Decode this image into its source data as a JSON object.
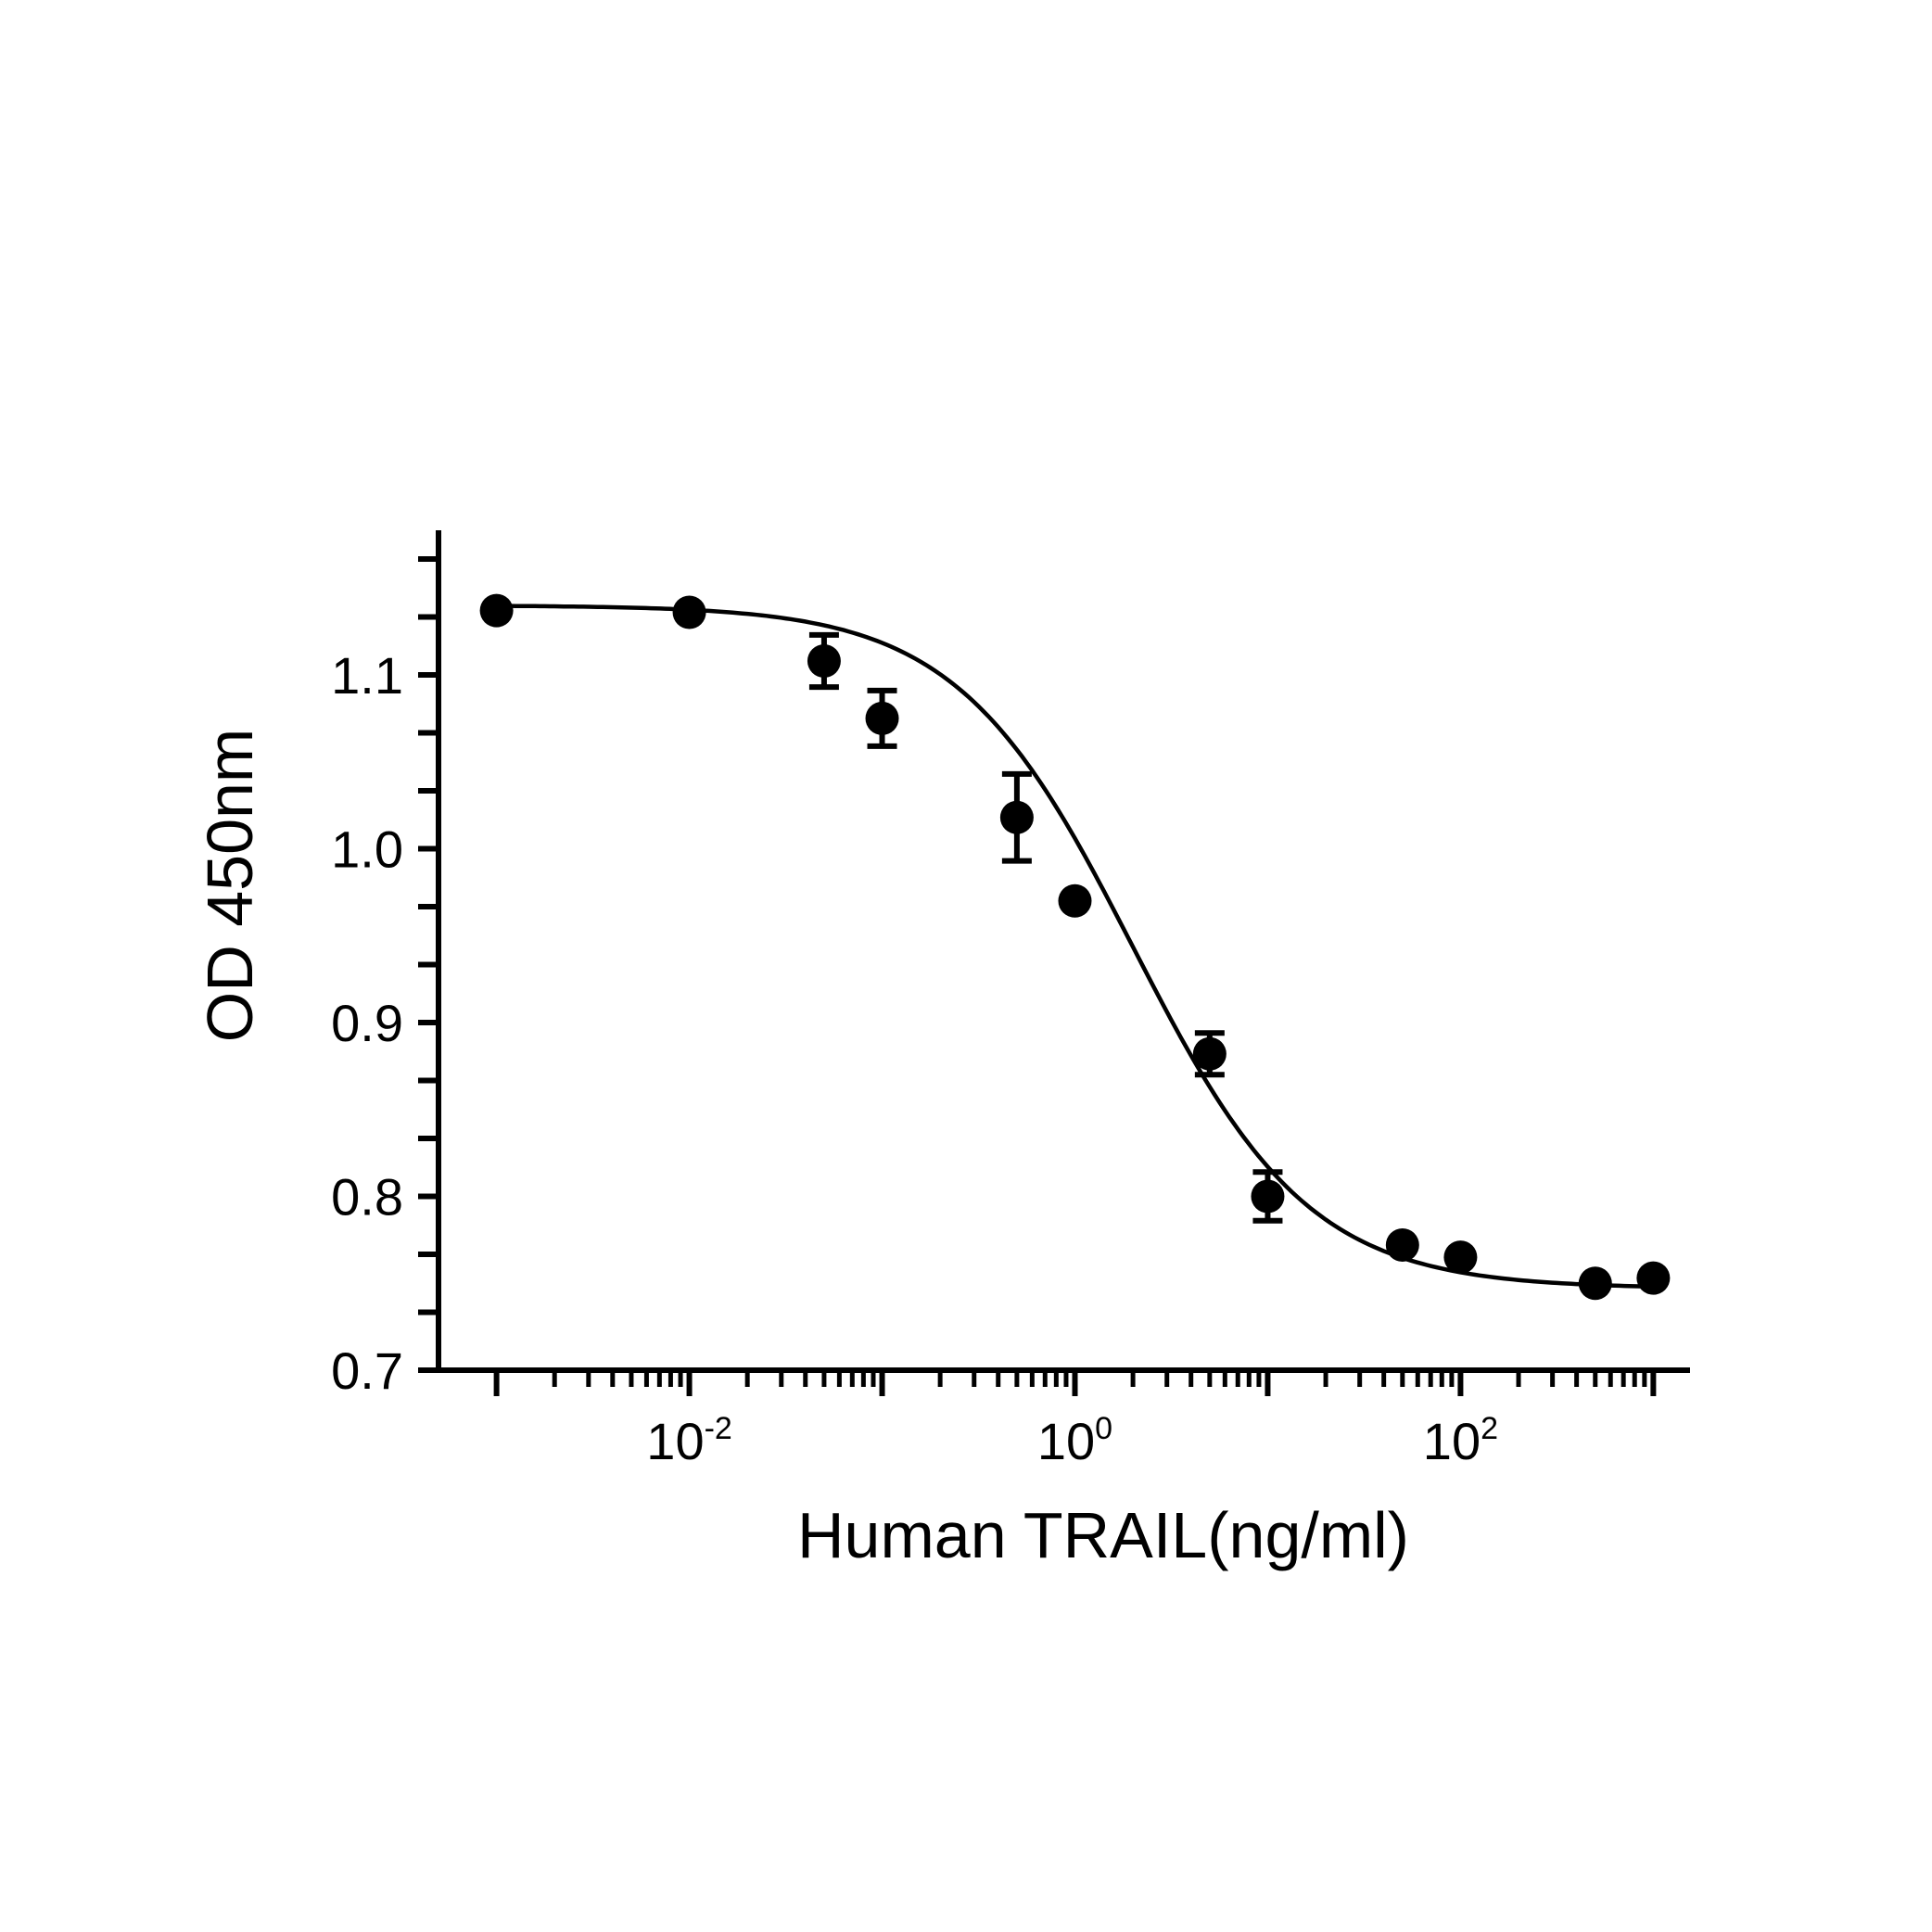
{
  "chart_data": {
    "type": "scatter",
    "xlabel": "Human TRAIL(ng/ml)",
    "ylabel": "OD 450nm",
    "x_scale": "log10",
    "xlim": [
      0.0005,
      1500
    ],
    "ylim": [
      0.7,
      1.18
    ],
    "y_ticks": [
      0.7,
      0.8,
      0.9,
      1.0,
      1.1
    ],
    "y_tick_labels": [
      "0.7",
      "0.8",
      "0.9",
      "1.0",
      "1.1"
    ],
    "y_minor_step": 0.033333,
    "x_ticks": [
      {
        "value": 0.01,
        "base": "10",
        "exp": "-2"
      },
      {
        "value": 1,
        "base": "10",
        "exp": "0"
      },
      {
        "value": 100,
        "base": "10",
        "exp": "2"
      }
    ],
    "x_tick_decades": [
      0.001,
      0.01,
      0.1,
      1,
      10,
      100,
      1000
    ],
    "grid": false,
    "legend": "none",
    "points": [
      {
        "x": 0.001,
        "y": 1.137,
        "err": 0
      },
      {
        "x": 0.01,
        "y": 1.136,
        "err": 0
      },
      {
        "x": 0.05,
        "y": 1.108,
        "err": 0.015
      },
      {
        "x": 0.1,
        "y": 1.075,
        "err": 0.016
      },
      {
        "x": 0.5,
        "y": 1.018,
        "err": 0.025
      },
      {
        "x": 1,
        "y": 0.97,
        "err": 0
      },
      {
        "x": 5,
        "y": 0.882,
        "err": 0.012
      },
      {
        "x": 10,
        "y": 0.8,
        "err": 0.014
      },
      {
        "x": 50,
        "y": 0.772,
        "err": 0
      },
      {
        "x": 100,
        "y": 0.765,
        "err": 0
      },
      {
        "x": 500,
        "y": 0.75,
        "err": 0
      },
      {
        "x": 1000,
        "y": 0.753,
        "err": 0
      }
    ],
    "fit": {
      "model": "4PL",
      "top": 1.14,
      "bottom": 0.747,
      "ec50": 2.0,
      "hill": 0.95,
      "x_range": [
        0.001,
        1000
      ]
    }
  }
}
